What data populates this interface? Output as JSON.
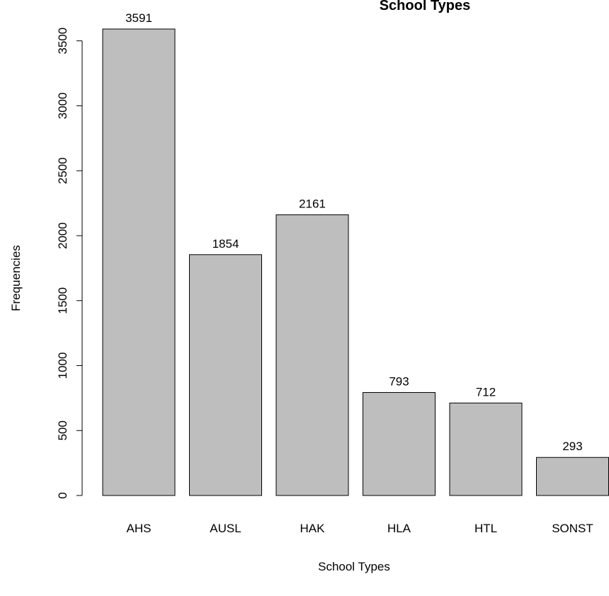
{
  "chart_data": {
    "type": "bar",
    "title": "School Types",
    "xlabel": "School Types",
    "ylabel": "Frequencies",
    "categories": [
      "AHS",
      "AUSL",
      "HAK",
      "HLA",
      "HTL",
      "SONST"
    ],
    "values": [
      3591,
      1854,
      2161,
      793,
      712,
      293
    ],
    "data_labels": [
      "3591",
      "1854",
      "2161",
      "793",
      "712",
      "293"
    ],
    "y_ticks": [
      0,
      500,
      1000,
      1500,
      2000,
      2500,
      3000,
      3500
    ],
    "y_tick_labels": [
      "0",
      "500",
      "1000",
      "1500",
      "2000",
      "2500",
      "3000",
      "3500"
    ],
    "ylim": [
      0,
      3591
    ],
    "grid": false,
    "bar_color": "#bebebe",
    "bar_stroke": "#000000"
  }
}
